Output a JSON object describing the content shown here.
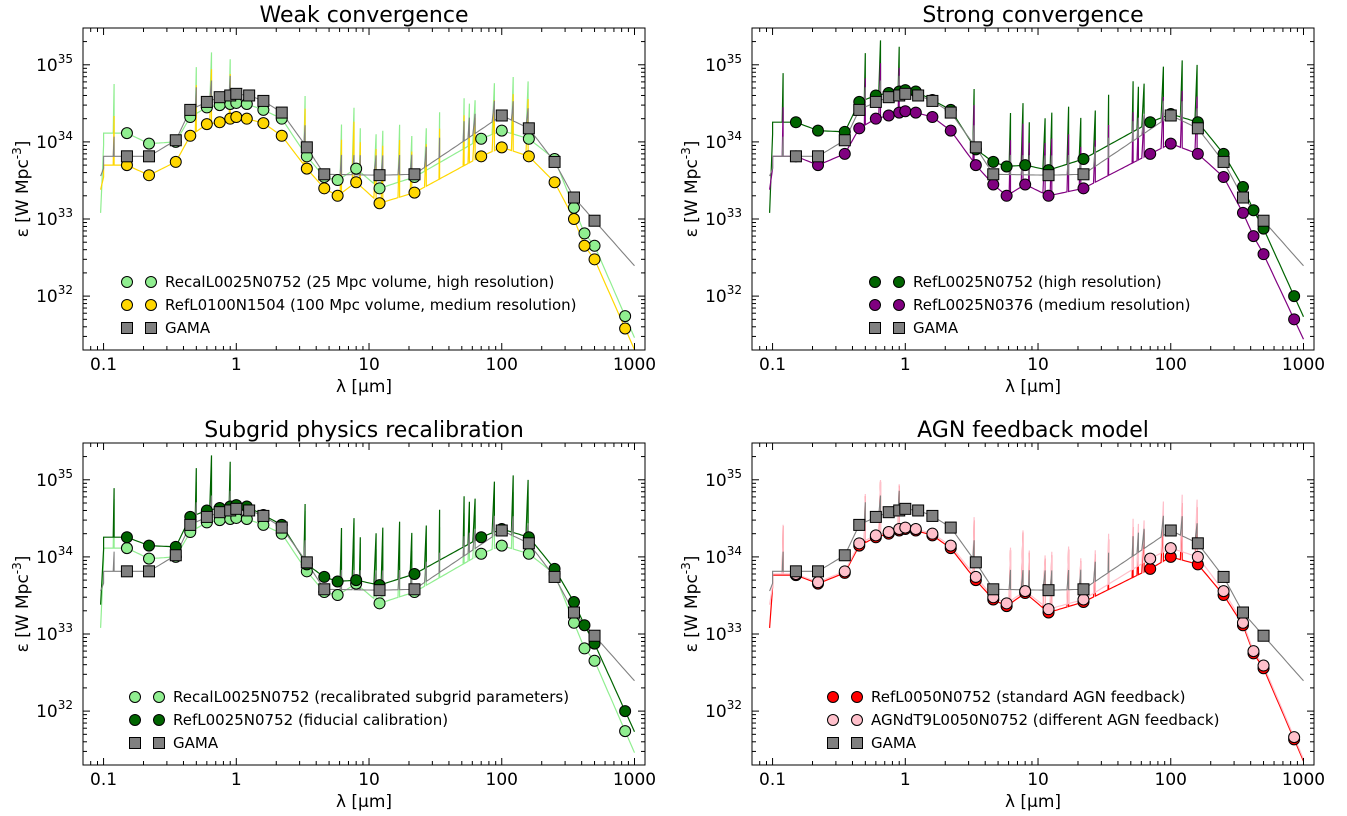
{
  "chart_data": [
    {
      "type": "line",
      "title": "Weak convergence",
      "xlabel": "λ [μm]",
      "ylabel": "ε [W Mpc",
      "ylabel_sup": "-3",
      "ylabel_close": "]",
      "x_scale": "log",
      "y_scale": "log",
      "xlim": [
        0.07,
        1200
      ],
      "ylim": [
        2e+31,
        3e+35
      ],
      "x_tick_labels": [
        "0.1",
        "1",
        "10",
        "100",
        "1000"
      ],
      "x_tick_values": [
        0.1,
        1,
        10,
        100,
        1000
      ],
      "y_tick_base": "10",
      "y_tick_exps": [
        "32",
        "33",
        "34",
        "35"
      ],
      "y_tick_values": [
        1e+32,
        1e+33,
        1e+34,
        1e+35
      ],
      "legend_position": "lower-left",
      "series": [
        {
          "name": "RecalL0025N0752 (25 Mpc volume, high resolution)",
          "color": "#90ee90",
          "marker": "circle",
          "x": [
            0.15,
            0.22,
            0.35,
            0.45,
            0.6,
            0.75,
            0.9,
            1.0,
            1.2,
            1.6,
            2.2,
            3.4,
            4.6,
            5.8,
            8.0,
            12.0,
            22.0,
            70.0,
            100.0,
            160.0,
            250.0,
            350.0,
            420.0,
            500.0,
            850.0
          ],
          "y": [
            1.3e+34,
            9.5e+33,
            1e+34,
            2.1e+34,
            2.8e+34,
            3e+34,
            3.1e+34,
            3.2e+34,
            3.1e+34,
            2.6e+34,
            2e+34,
            6.5e+33,
            3.5e+33,
            3.2e+33,
            4.5e+33,
            2.5e+33,
            3.5e+33,
            1.1e+34,
            1.4e+34,
            1.1e+34,
            6e+33,
            1.4e+33,
            6.5e+32,
            4.5e+32,
            5.5e+31
          ]
        },
        {
          "name": "RefL0100N1504 (100 Mpc volume, medium resolution)",
          "color": "#ffd700",
          "marker": "circle",
          "x": [
            0.15,
            0.22,
            0.35,
            0.45,
            0.6,
            0.75,
            0.9,
            1.0,
            1.2,
            1.6,
            2.2,
            3.4,
            4.6,
            5.8,
            8.0,
            12.0,
            22.0,
            70.0,
            100.0,
            160.0,
            250.0,
            350.0,
            420.0,
            500.0,
            850.0
          ],
          "y": [
            5e+33,
            3.7e+33,
            5.5e+33,
            1.2e+34,
            1.7e+34,
            1.8e+34,
            2e+34,
            2.1e+34,
            2e+34,
            1.75e+34,
            1.2e+34,
            4.5e+33,
            2.5e+33,
            2e+33,
            3e+33,
            1.6e+33,
            2.2e+33,
            6.5e+33,
            8.5e+33,
            6.5e+33,
            3e+33,
            1e+33,
            4.5e+32,
            3e+32,
            3.8e+31
          ]
        },
        {
          "name": "GAMA",
          "color": "#808080",
          "marker": "square",
          "x": [
            0.15,
            0.22,
            0.35,
            0.45,
            0.6,
            0.75,
            0.9,
            1.0,
            1.25,
            1.6,
            2.2,
            3.4,
            4.6,
            12.0,
            22.0,
            100.0,
            160.0,
            250.0,
            350.0,
            500.0
          ],
          "y": [
            6.5e+33,
            6.5e+33,
            1.05e+34,
            2.6e+34,
            3.3e+34,
            3.8e+34,
            4e+34,
            4.2e+34,
            4e+34,
            3.4e+34,
            2.4e+34,
            8.5e+33,
            3.8e+33,
            3.7e+33,
            3.8e+33,
            2.2e+34,
            1.5e+34,
            5.5e+33,
            1.9e+33,
            9.5e+32
          ]
        }
      ]
    },
    {
      "type": "line",
      "title": "Strong convergence",
      "xlabel": "λ [μm]",
      "ylabel": "ε [W Mpc",
      "ylabel_sup": "-3",
      "ylabel_close": "]",
      "x_scale": "log",
      "y_scale": "log",
      "xlim": [
        0.07,
        1200
      ],
      "ylim": [
        2e+31,
        3e+35
      ],
      "x_tick_labels": [
        "0.1",
        "1",
        "10",
        "100",
        "1000"
      ],
      "x_tick_values": [
        0.1,
        1,
        10,
        100,
        1000
      ],
      "y_tick_base": "10",
      "y_tick_exps": [
        "32",
        "33",
        "34",
        "35"
      ],
      "y_tick_values": [
        1e+32,
        1e+33,
        1e+34,
        1e+35
      ],
      "legend_position": "lower-left",
      "series": [
        {
          "name": "RefL0025N0752 (high resolution)",
          "color": "#006400",
          "marker": "circle",
          "x": [
            0.15,
            0.22,
            0.35,
            0.45,
            0.6,
            0.75,
            0.9,
            1.0,
            1.2,
            1.6,
            2.2,
            3.4,
            4.6,
            5.8,
            8.0,
            12.0,
            22.0,
            70.0,
            100.0,
            160.0,
            250.0,
            350.0,
            420.0,
            500.0,
            850.0
          ],
          "y": [
            1.8e+34,
            1.4e+34,
            1.35e+34,
            3.3e+34,
            4e+34,
            4.3e+34,
            4.5e+34,
            4.7e+34,
            4.5e+34,
            3.5e+34,
            2.6e+34,
            8e+33,
            5.5e+33,
            4.8e+33,
            5e+33,
            4.3e+33,
            6e+33,
            1.8e+34,
            2.3e+34,
            1.8e+34,
            7e+33,
            2.6e+33,
            1.3e+33,
            7.5e+32,
            1e+32
          ]
        },
        {
          "name": "RefL0025N0376 (medium resolution)",
          "color": "#800080",
          "marker": "circle",
          "x": [
            0.15,
            0.22,
            0.35,
            0.45,
            0.6,
            0.75,
            0.9,
            1.0,
            1.2,
            1.6,
            2.2,
            3.4,
            4.6,
            5.8,
            8.0,
            12.0,
            22.0,
            70.0,
            100.0,
            160.0,
            250.0,
            350.0,
            420.0,
            500.0,
            850.0
          ],
          "y": [
            6.5e+33,
            5e+33,
            7e+33,
            1.5e+34,
            2e+34,
            2.2e+34,
            2.4e+34,
            2.5e+34,
            2.4e+34,
            2.1e+34,
            1.4e+34,
            5e+33,
            2.8e+33,
            2e+33,
            2.8e+33,
            2e+33,
            2.5e+33,
            7e+33,
            9.5e+33,
            7e+33,
            3.5e+33,
            1.2e+33,
            6e+32,
            3.5e+32,
            5e+31
          ]
        },
        {
          "name": "GAMA",
          "color": "#808080",
          "marker": "square",
          "x": [
            0.15,
            0.22,
            0.35,
            0.45,
            0.6,
            0.75,
            0.9,
            1.0,
            1.25,
            1.6,
            2.2,
            3.4,
            4.6,
            12.0,
            22.0,
            100.0,
            160.0,
            250.0,
            350.0,
            500.0
          ],
          "y": [
            6.5e+33,
            6.5e+33,
            1.05e+34,
            2.6e+34,
            3.3e+34,
            3.8e+34,
            4e+34,
            4.2e+34,
            4e+34,
            3.4e+34,
            2.4e+34,
            8.5e+33,
            3.8e+33,
            3.7e+33,
            3.8e+33,
            2.2e+34,
            1.5e+34,
            5.5e+33,
            1.9e+33,
            9.5e+32
          ]
        }
      ]
    },
    {
      "type": "line",
      "title": "Subgrid physics recalibration",
      "xlabel": "λ [μm]",
      "ylabel": "ε [W Mpc",
      "ylabel_sup": "-3",
      "ylabel_close": "]",
      "x_scale": "log",
      "y_scale": "log",
      "xlim": [
        0.07,
        1200
      ],
      "ylim": [
        2e+31,
        3e+35
      ],
      "x_tick_labels": [
        "0.1",
        "1",
        "10",
        "100",
        "1000"
      ],
      "x_tick_values": [
        0.1,
        1,
        10,
        100,
        1000
      ],
      "y_tick_base": "10",
      "y_tick_exps": [
        "32",
        "33",
        "34",
        "35"
      ],
      "y_tick_values": [
        1e+32,
        1e+33,
        1e+34,
        1e+35
      ],
      "legend_position": "lower-left",
      "series": [
        {
          "name": "RecalL0025N0752 (recalibrated subgrid parameters)",
          "color": "#90ee90",
          "marker": "circle",
          "x": [
            0.15,
            0.22,
            0.35,
            0.45,
            0.6,
            0.75,
            0.9,
            1.0,
            1.2,
            1.6,
            2.2,
            3.4,
            4.6,
            5.8,
            8.0,
            12.0,
            22.0,
            70.0,
            100.0,
            160.0,
            250.0,
            350.0,
            420.0,
            500.0,
            850.0
          ],
          "y": [
            1.3e+34,
            9.5e+33,
            1e+34,
            2.1e+34,
            2.8e+34,
            3e+34,
            3.1e+34,
            3.2e+34,
            3.1e+34,
            2.6e+34,
            2e+34,
            6.5e+33,
            3.5e+33,
            3.2e+33,
            4.5e+33,
            2.5e+33,
            3.5e+33,
            1.1e+34,
            1.4e+34,
            1.1e+34,
            6e+33,
            1.4e+33,
            6.5e+32,
            4.5e+32,
            5.5e+31
          ]
        },
        {
          "name": "RefL0025N0752 (fiducial calibration)",
          "color": "#006400",
          "marker": "circle",
          "x": [
            0.15,
            0.22,
            0.35,
            0.45,
            0.6,
            0.75,
            0.9,
            1.0,
            1.2,
            1.6,
            2.2,
            3.4,
            4.6,
            5.8,
            8.0,
            12.0,
            22.0,
            70.0,
            100.0,
            160.0,
            250.0,
            350.0,
            420.0,
            500.0,
            850.0
          ],
          "y": [
            1.8e+34,
            1.4e+34,
            1.35e+34,
            3.3e+34,
            4e+34,
            4.3e+34,
            4.5e+34,
            4.7e+34,
            4.5e+34,
            3.5e+34,
            2.6e+34,
            8e+33,
            5.5e+33,
            4.8e+33,
            5e+33,
            4.3e+33,
            6e+33,
            1.8e+34,
            2.3e+34,
            1.8e+34,
            7e+33,
            2.6e+33,
            1.3e+33,
            7.5e+32,
            1e+32
          ]
        },
        {
          "name": "GAMA",
          "color": "#808080",
          "marker": "square",
          "x": [
            0.15,
            0.22,
            0.35,
            0.45,
            0.6,
            0.75,
            0.9,
            1.0,
            1.25,
            1.6,
            2.2,
            3.4,
            4.6,
            12.0,
            22.0,
            100.0,
            160.0,
            250.0,
            350.0,
            500.0
          ],
          "y": [
            6.5e+33,
            6.5e+33,
            1.05e+34,
            2.6e+34,
            3.3e+34,
            3.8e+34,
            4e+34,
            4.2e+34,
            4e+34,
            3.4e+34,
            2.4e+34,
            8.5e+33,
            3.8e+33,
            3.7e+33,
            3.8e+33,
            2.2e+34,
            1.5e+34,
            5.5e+33,
            1.9e+33,
            9.5e+32
          ]
        }
      ]
    },
    {
      "type": "line",
      "title": "AGN feedback model",
      "xlabel": "λ [μm]",
      "ylabel": "ε [W Mpc",
      "ylabel_sup": "-3",
      "ylabel_close": "]",
      "x_scale": "log",
      "y_scale": "log",
      "xlim": [
        0.07,
        1200
      ],
      "ylim": [
        2e+31,
        3e+35
      ],
      "x_tick_labels": [
        "0.1",
        "1",
        "10",
        "100",
        "1000"
      ],
      "x_tick_values": [
        0.1,
        1,
        10,
        100,
        1000
      ],
      "y_tick_base": "10",
      "y_tick_exps": [
        "32",
        "33",
        "34",
        "35"
      ],
      "y_tick_values": [
        1e+32,
        1e+33,
        1e+34,
        1e+35
      ],
      "legend_position": "lower-center",
      "series": [
        {
          "name": "RefL0050N0752 (standard AGN feedback)",
          "color": "#ff0000",
          "marker": "circle",
          "x": [
            0.15,
            0.22,
            0.35,
            0.45,
            0.6,
            0.75,
            0.9,
            1.0,
            1.2,
            1.6,
            2.2,
            3.4,
            4.6,
            5.8,
            8.0,
            12.0,
            22.0,
            70.0,
            100.0,
            160.0,
            250.0,
            350.0,
            420.0,
            500.0,
            850.0
          ],
          "y": [
            5.8e+33,
            4.5e+33,
            6.2e+33,
            1.4e+34,
            1.8e+34,
            2e+34,
            2.2e+34,
            2.3e+34,
            2.2e+34,
            1.9e+34,
            1.3e+34,
            5e+33,
            2.8e+33,
            2.3e+33,
            3.4e+33,
            1.9e+33,
            2.6e+33,
            7e+33,
            1e+34,
            8e+33,
            3.2e+33,
            1.3e+33,
            5.6e+32,
            3.6e+32,
            4.3e+31
          ]
        },
        {
          "name": "AGNdT9L0050N0752 (different AGN feedback)",
          "color": "#ffc0cb",
          "marker": "circle",
          "x": [
            0.15,
            0.22,
            0.35,
            0.45,
            0.6,
            0.75,
            0.9,
            1.0,
            1.2,
            1.6,
            2.2,
            3.4,
            4.6,
            5.8,
            8.0,
            12.0,
            22.0,
            70.0,
            100.0,
            160.0,
            250.0,
            350.0,
            420.0,
            500.0,
            850.0
          ],
          "y": [
            6e+33,
            4.7e+33,
            6.5e+33,
            1.5e+34,
            1.9e+34,
            2.1e+34,
            2.3e+34,
            2.4e+34,
            2.3e+34,
            2e+34,
            1.4e+34,
            5.5e+33,
            3e+33,
            2.5e+33,
            3.6e+33,
            2.1e+33,
            2.8e+33,
            9.5e+33,
            1.3e+34,
            1e+34,
            3.6e+33,
            1.4e+33,
            6e+32,
            3.9e+32,
            4.6e+31
          ]
        },
        {
          "name": "GAMA",
          "color": "#808080",
          "marker": "square",
          "x": [
            0.15,
            0.22,
            0.35,
            0.45,
            0.6,
            0.75,
            0.9,
            1.0,
            1.25,
            1.6,
            2.2,
            3.4,
            4.6,
            12.0,
            22.0,
            100.0,
            160.0,
            250.0,
            350.0,
            500.0
          ],
          "y": [
            6.5e+33,
            6.5e+33,
            1.05e+34,
            2.6e+34,
            3.3e+34,
            3.8e+34,
            4e+34,
            4.2e+34,
            4e+34,
            3.4e+34,
            2.4e+34,
            8.5e+33,
            3.8e+33,
            3.7e+33,
            3.8e+33,
            2.2e+34,
            1.5e+34,
            5.5e+33,
            1.9e+33,
            9.5e+32
          ]
        }
      ]
    }
  ]
}
